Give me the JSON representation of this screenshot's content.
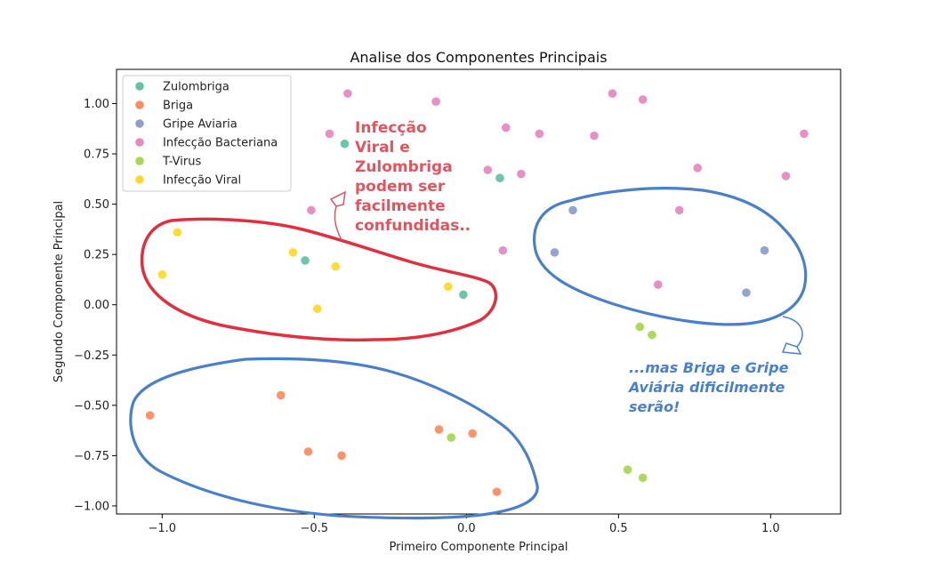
{
  "chart_data": {
    "type": "scatter",
    "title": "Analise dos Componentes Principais",
    "xlabel": "Primeiro Componente Principal",
    "ylabel": "Segundo Componente Principal",
    "xlim": [
      -1.15,
      1.23
    ],
    "ylim": [
      -1.04,
      1.17
    ],
    "x_ticks": [
      -1.0,
      -0.5,
      0.0,
      0.5,
      1.0
    ],
    "x_tick_labels": [
      "−1.0",
      "−0.5",
      "0.0",
      "0.5",
      "1.0"
    ],
    "y_ticks": [
      -1.0,
      -0.75,
      -0.5,
      -0.25,
      0.0,
      0.25,
      0.5,
      0.75,
      1.0
    ],
    "y_tick_labels": [
      "−1.00",
      "−0.75",
      "−0.50",
      "−0.25",
      "0.00",
      "0.25",
      "0.50",
      "0.75",
      "1.00"
    ],
    "grid": false,
    "legend_position": "top-left",
    "series": [
      {
        "name": "Zulombriga",
        "color": "#66c2a5",
        "x": [
          -0.4,
          0.11,
          -0.53,
          -0.01
        ],
        "y": [
          0.8,
          0.63,
          0.22,
          0.05
        ]
      },
      {
        "name": "Briga",
        "color": "#fc8d62",
        "x": [
          -0.61,
          -1.04,
          -0.52,
          -0.41,
          -0.09,
          0.02,
          0.1
        ],
        "y": [
          -0.45,
          -0.55,
          -0.73,
          -0.75,
          -0.62,
          -0.64,
          -0.93
        ]
      },
      {
        "name": "Gripe Aviaria",
        "color": "#8da0cb",
        "x": [
          0.35,
          0.29,
          0.98,
          0.92
        ],
        "y": [
          0.47,
          0.26,
          0.27,
          0.06
        ]
      },
      {
        "name": "Infecção Bacteriana",
        "color": "#e78ac3",
        "x": [
          -0.39,
          -0.1,
          0.48,
          0.58,
          -0.45,
          0.13,
          0.24,
          0.42,
          1.11,
          0.07,
          0.18,
          0.76,
          1.05,
          -0.51,
          0.7,
          0.12,
          0.63
        ],
        "y": [
          1.05,
          1.01,
          1.05,
          1.02,
          0.85,
          0.88,
          0.85,
          0.84,
          0.85,
          0.67,
          0.65,
          0.68,
          0.64,
          0.47,
          0.47,
          0.27,
          0.1
        ]
      },
      {
        "name": "T-Virus",
        "color": "#a6d854",
        "x": [
          0.57,
          0.61,
          -0.05,
          0.53,
          0.58
        ],
        "y": [
          -0.11,
          -0.15,
          -0.66,
          -0.82,
          -0.86
        ]
      },
      {
        "name": "Infecção Viral",
        "color": "#ffd92f",
        "x": [
          -0.95,
          -1.0,
          -0.57,
          -0.43,
          -0.06,
          -0.49
        ],
        "y": [
          0.36,
          0.15,
          0.26,
          0.19,
          0.09,
          -0.02
        ]
      }
    ],
    "annotations": [
      {
        "name": "red-annotation",
        "color": "#e05560",
        "lines": [
          "Infecção",
          "Viral e",
          "Zulombriga",
          "podem ser",
          "facilmente",
          "confundidas.."
        ]
      },
      {
        "name": "blue-annotation",
        "color": "#4a80c8",
        "lines": [
          "...mas Briga e Gripe",
          "Aviária dificilmente",
          "serão!"
        ]
      }
    ]
  }
}
